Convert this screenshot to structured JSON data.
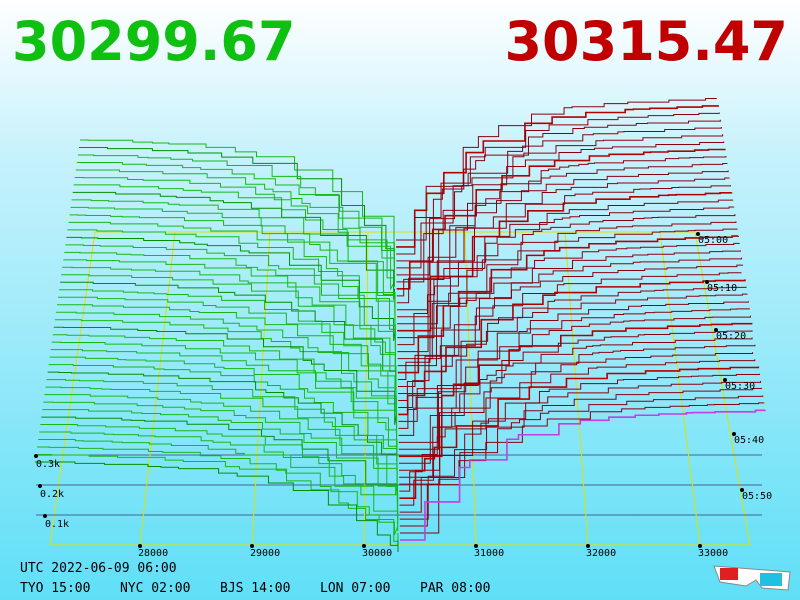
{
  "header": {
    "bid": "30299.67",
    "ask": "30315.47"
  },
  "price_axis": {
    "ticks": [
      "28000",
      "29000",
      "30000",
      "31000",
      "32000",
      "33000"
    ]
  },
  "volume_axis": {
    "ticks": [
      "0.3k",
      "0.2k",
      "0.1k"
    ]
  },
  "time_axis": {
    "ticks": [
      "05:00",
      "05:10",
      "05:20",
      "05:30",
      "05:40",
      "05:50"
    ]
  },
  "footer": {
    "utc": "UTC 2022-06-09 06:00",
    "zones": [
      "TYO 15:00",
      "NYC 02:00",
      "BJS 14:00",
      "LON 07:00",
      "PAR 08:00"
    ]
  }
}
